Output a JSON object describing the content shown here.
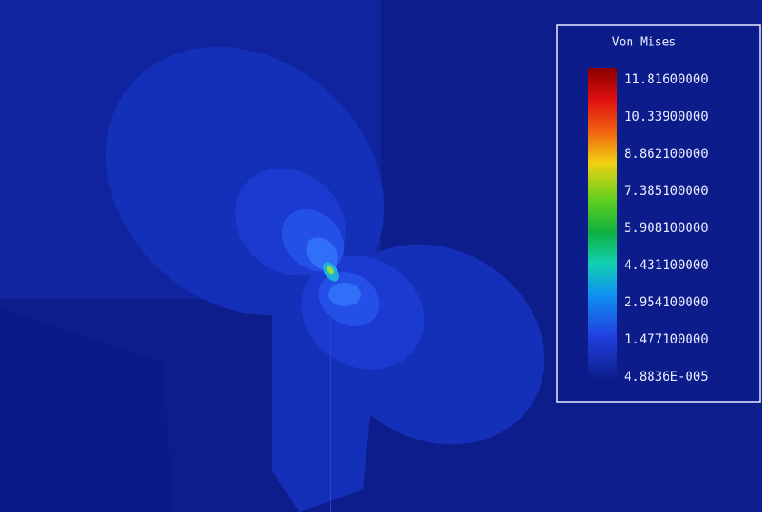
{
  "legend": {
    "title": "Von Mises",
    "labels": [
      "11.81600000",
      "10.33900000",
      "8.862100000",
      "7.385100000",
      "5.908100000",
      "4.431100000",
      "2.954100000",
      "1.477100000",
      "4.8836E-005"
    ]
  }
}
